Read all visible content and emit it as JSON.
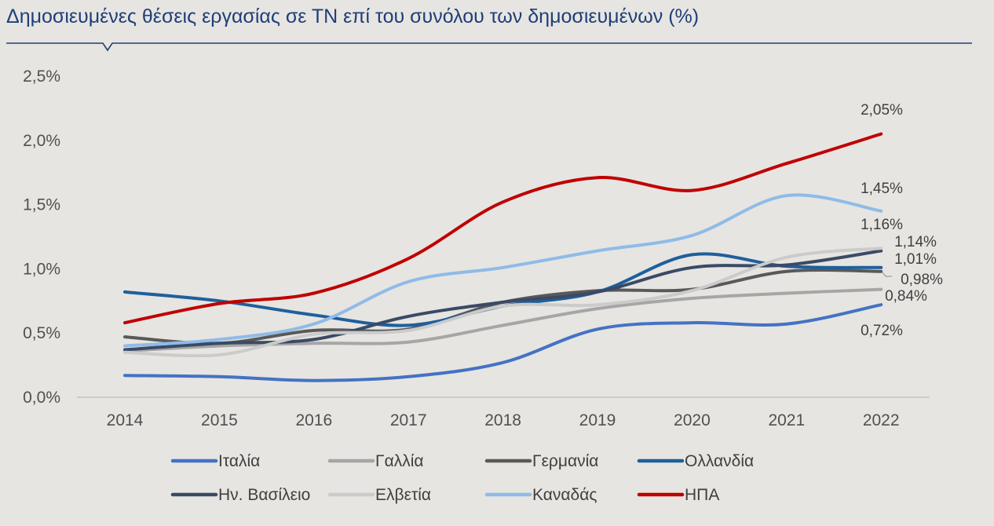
{
  "chart_data": {
    "type": "line",
    "title": "Δημοσιευμένες θέσεις εργασίας σε ΤΝ επί του συνόλου των δημοσιευμένων (%)",
    "xlabel": "",
    "ylabel": "",
    "x": [
      "2014",
      "2015",
      "2016",
      "2017",
      "2018",
      "2019",
      "2020",
      "2021",
      "2022"
    ],
    "ylim": [
      0,
      2.5
    ],
    "yticks": [
      0,
      0.5,
      1.0,
      1.5,
      2.0,
      2.5
    ],
    "ytick_labels": [
      "0,0%",
      "0,5%",
      "1,0%",
      "1,5%",
      "2,0%",
      "2,5%"
    ],
    "grid": false,
    "legend_position": "bottom",
    "series": [
      {
        "name": "Ιταλία",
        "color": "#4472c4",
        "values": [
          0.17,
          0.16,
          0.13,
          0.16,
          0.27,
          0.53,
          0.58,
          0.57,
          0.72
        ],
        "end_label": "0,72%"
      },
      {
        "name": "Γαλλία",
        "color": "#a6a6a6",
        "values": [
          0.36,
          0.4,
          0.42,
          0.43,
          0.56,
          0.69,
          0.77,
          0.81,
          0.84
        ],
        "end_label": "0,84%"
      },
      {
        "name": "Γερμανία",
        "color": "#595959",
        "values": [
          0.47,
          0.42,
          0.52,
          0.53,
          0.74,
          0.83,
          0.84,
          0.98,
          0.98
        ],
        "end_label": "0,98%"
      },
      {
        "name": "Ολλανδία",
        "color": "#1f5f9c",
        "values": [
          0.82,
          0.75,
          0.64,
          0.56,
          0.71,
          0.82,
          1.11,
          1.02,
          1.01
        ],
        "end_label": "1,01%"
      },
      {
        "name": "Ην. Βασίλειο",
        "color": "#3a4a66",
        "values": [
          0.37,
          0.42,
          0.45,
          0.63,
          0.74,
          0.82,
          1.01,
          1.03,
          1.14
        ],
        "end_label": "1,14%"
      },
      {
        "name": "Ελβετία",
        "color": "#cbcbcb",
        "values": [
          0.35,
          0.33,
          0.49,
          0.52,
          0.71,
          0.72,
          0.83,
          1.09,
          1.16
        ],
        "end_label": "1,16%"
      },
      {
        "name": "Καναδάς",
        "color": "#8fbbe8",
        "values": [
          0.4,
          0.45,
          0.57,
          0.9,
          1.01,
          1.14,
          1.26,
          1.57,
          1.45
        ],
        "end_label": "1,45%"
      },
      {
        "name": "ΗΠΑ",
        "color": "#c00000",
        "values": [
          0.58,
          0.73,
          0.81,
          1.08,
          1.52,
          1.71,
          1.61,
          1.82,
          2.05
        ],
        "end_label": "2,05%"
      }
    ]
  }
}
